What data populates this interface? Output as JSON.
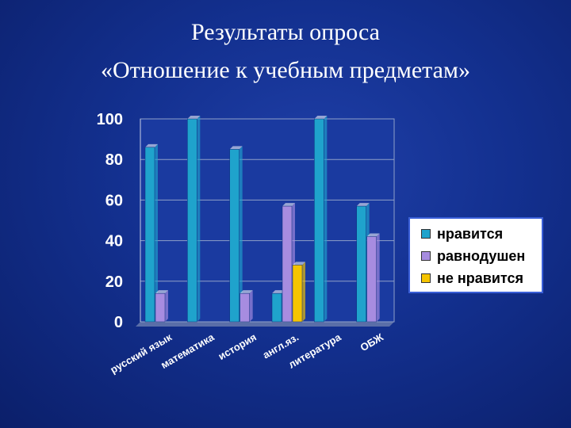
{
  "page": {
    "title_line1": "Результаты опроса",
    "title_line2": "«Отношение к учебным предметам»"
  },
  "colors": {
    "like": "#1fa3cc",
    "neutral": "#a78ce0",
    "dislike": "#f5c400"
  },
  "chart_data": {
    "type": "bar",
    "categories": [
      "русский язык",
      "математика",
      "история",
      "англ.яз.",
      "литература",
      "ОБЖ"
    ],
    "series": [
      {
        "name": "нравится",
        "values": [
          86,
          100,
          85,
          14,
          100,
          57
        ]
      },
      {
        "name": "равнодушен",
        "values": [
          14,
          0,
          14,
          57,
          0,
          42
        ]
      },
      {
        "name": "не нравится",
        "values": [
          0,
          0,
          0,
          28,
          0,
          0
        ]
      }
    ],
    "ylim": [
      0,
      100
    ],
    "yticks": [
      "0",
      "20",
      "40",
      "60",
      "80",
      "100"
    ],
    "grid": true,
    "legend_position": "right"
  }
}
